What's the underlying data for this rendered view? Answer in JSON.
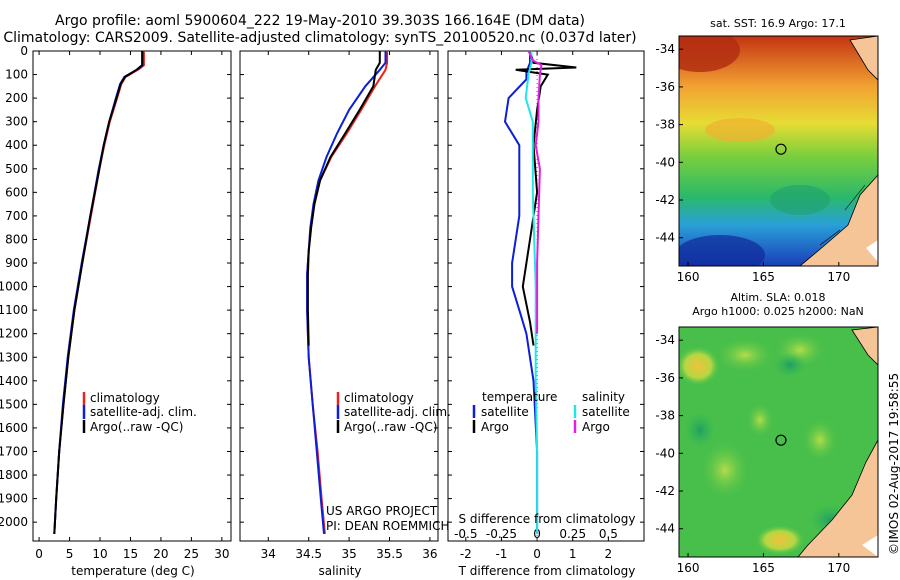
{
  "title": {
    "line1": "Argo profile: aoml 5900604_222 19-May-2010 39.303S 166.164E (DM data)",
    "line2": "Climatology: CARS2009. Satellite-adjusted climatology: synTS_20100520.nc (0.037d later)"
  },
  "colors": {
    "climatology": "#e8221c",
    "satellite": "#0b1fd6",
    "argo": "#000000",
    "sal_satellite": "#20e6e6",
    "sal_argo": "#e020e0"
  },
  "chart_data": [
    {
      "type": "line",
      "id": "temperature",
      "xlabel": "temperature (deg C)",
      "ylabel": "",
      "xlim": [
        -1,
        31.5
      ],
      "ylim": [
        2080,
        0
      ],
      "xticks": [
        0,
        5,
        10,
        15,
        20,
        25,
        30
      ],
      "yticks": [
        0,
        100,
        200,
        300,
        400,
        500,
        600,
        700,
        800,
        900,
        1000,
        1100,
        1200,
        1300,
        1400,
        1500,
        1600,
        1700,
        1800,
        1900,
        2000
      ],
      "legend": {
        "placement": "center-left",
        "entries": [
          "climatology",
          "satellite-adj. clim.",
          "Argo(..raw -QC)"
        ]
      },
      "series": [
        {
          "name": "climatology",
          "depth": [
            0,
            60,
            75,
            110,
            140,
            200,
            300,
            400,
            500,
            700,
            900,
            1100,
            1300,
            1500,
            1700,
            1900,
            2050
          ],
          "values": [
            17.2,
            17.2,
            16.5,
            14.2,
            13.5,
            12.8,
            11.6,
            10.7,
            9.9,
            8.5,
            7.1,
            5.8,
            4.8,
            4.0,
            3.3,
            2.8,
            2.5
          ]
        },
        {
          "name": "satellite-adj. clim.",
          "depth": [
            0,
            60,
            75,
            110,
            140,
            200,
            300,
            400,
            500,
            700,
            900,
            1100,
            1300,
            1500,
            1700,
            1900,
            2050
          ],
          "values": [
            17.0,
            17.0,
            16.3,
            14.0,
            13.3,
            12.6,
            11.5,
            10.6,
            9.8,
            8.4,
            7.0,
            5.7,
            4.7,
            3.9,
            3.3,
            2.8,
            2.5
          ]
        },
        {
          "name": "Argo(..raw -QC)",
          "depth": [
            0,
            60,
            80,
            110,
            140,
            200,
            300,
            400,
            500,
            700,
            900,
            1100,
            1300,
            1500,
            1700,
            1900,
            2050
          ],
          "values": [
            16.9,
            16.9,
            16.0,
            14.1,
            13.4,
            12.7,
            11.5,
            10.6,
            9.9,
            8.4,
            7.1,
            5.8,
            4.8,
            4.0,
            3.3,
            2.8,
            2.5
          ]
        }
      ]
    },
    {
      "type": "line",
      "id": "salinity",
      "xlabel": "salinity",
      "ylabel": "",
      "xlim": [
        33.65,
        36.1
      ],
      "ylim": [
        2080,
        0
      ],
      "xticks": [
        34,
        34.5,
        35,
        35.5,
        36
      ],
      "legend": {
        "placement": "center-right",
        "entries": [
          "climatology",
          "satellite-adj. clim.",
          "Argo(..raw -QC)"
        ]
      },
      "series": [
        {
          "name": "climatology",
          "depth": [
            0,
            50,
            80,
            150,
            250,
            350,
            450,
            550,
            650,
            750,
            850,
            950,
            1100,
            1300,
            1500,
            1700,
            1900,
            2050
          ],
          "values": [
            35.47,
            35.47,
            35.45,
            35.32,
            35.15,
            34.97,
            34.78,
            34.64,
            34.57,
            34.53,
            34.5,
            34.48,
            34.48,
            34.5,
            34.55,
            34.61,
            34.66,
            34.7
          ]
        },
        {
          "name": "satellite-adj. clim.",
          "depth": [
            0,
            50,
            80,
            150,
            250,
            350,
            450,
            550,
            650,
            750,
            850,
            950,
            1100,
            1300,
            1500,
            1700,
            1900,
            2050
          ],
          "values": [
            35.45,
            35.45,
            35.38,
            35.2,
            35.0,
            34.85,
            34.72,
            34.62,
            34.56,
            34.52,
            34.5,
            34.48,
            34.48,
            34.5,
            34.55,
            34.6,
            34.65,
            34.69
          ]
        },
        {
          "name": "Argo(..raw -QC)",
          "depth": [
            0,
            50,
            80,
            150,
            250,
            350,
            450,
            550,
            650,
            750,
            850,
            950,
            1100,
            1250
          ],
          "values": [
            35.38,
            35.38,
            35.33,
            35.3,
            35.13,
            34.95,
            34.77,
            34.64,
            34.57,
            34.53,
            34.5,
            34.49,
            34.49,
            34.5
          ]
        }
      ],
      "annotations": [
        "US ARGO PROJECT",
        "PI: DEAN ROEMMICH"
      ]
    },
    {
      "type": "line",
      "id": "differences",
      "xlabel": "T difference from climatology",
      "x2label": "S difference from climatology",
      "xlim": [
        -2.5,
        3.0
      ],
      "x2lim": [
        -0.625,
        0.75
      ],
      "ylim": [
        2080,
        0
      ],
      "xticks": [
        -2,
        -1,
        0,
        1,
        2
      ],
      "x2ticks": [
        -0.5,
        -0.25,
        0,
        0.25,
        0.5
      ],
      "legend": {
        "placement": "center",
        "groups": [
          "temperature",
          "salinity"
        ],
        "entries": [
          "satellite",
          "Argo",
          "satellite",
          "Argo"
        ]
      },
      "series": [
        {
          "name": "temperature satellite",
          "depth": [
            0,
            50,
            90,
            120,
            200,
            300,
            400,
            500,
            700,
            900,
            1000,
            1100,
            1200,
            1400,
            1700,
            2050
          ],
          "values": [
            -0.2,
            -0.2,
            -0.3,
            -0.3,
            -0.8,
            -0.9,
            -0.5,
            -0.5,
            -0.5,
            -0.7,
            -0.7,
            -0.5,
            -0.3,
            -0.1,
            0.0,
            0.0
          ]
        },
        {
          "name": "temperature Argo",
          "depth": [
            0,
            50,
            70,
            80,
            100,
            150,
            250,
            400,
            600,
            800,
            1000,
            1150,
            1250
          ],
          "values": [
            -0.2,
            -0.1,
            1.1,
            -0.6,
            0.3,
            0.1,
            0.0,
            -0.1,
            0.0,
            -0.2,
            -0.4,
            -0.2,
            -0.1
          ]
        },
        {
          "name": "salinity satellite",
          "depth": [
            0,
            50,
            100,
            200,
            300,
            400,
            600,
            800,
            1000,
            1400,
            1700,
            2050
          ],
          "values": [
            -0.04,
            -0.04,
            -0.06,
            -0.08,
            -0.03,
            -0.03,
            -0.03,
            -0.02,
            -0.01,
            -0.01,
            0.0,
            0.0
          ]
        },
        {
          "name": "salinity Argo",
          "depth": [
            0,
            40,
            60,
            100,
            200,
            300,
            400,
            500,
            700,
            900,
            1100,
            1200
          ],
          "values": [
            -0.06,
            -0.03,
            0.03,
            0.02,
            0.01,
            0.01,
            -0.01,
            0.02,
            0.01,
            0.0,
            0.0,
            0.0
          ]
        }
      ]
    },
    {
      "type": "heatmap",
      "id": "sst-map",
      "title": "sat. SST: 16.9 Argo: 17.1",
      "xticks": [
        160,
        165,
        170
      ],
      "yticks": [
        -34,
        -36,
        -38,
        -40,
        -42,
        -44
      ],
      "marker": {
        "lon": 166.164,
        "lat": -39.303
      }
    },
    {
      "type": "heatmap",
      "id": "sla-map",
      "title": "Altim. SLA: 0.018",
      "subtitle": "Argo h1000: 0.025 h2000: NaN",
      "xticks": [
        160,
        165,
        170
      ],
      "yticks": [
        -34,
        -36,
        -38,
        -40,
        -42,
        -44
      ],
      "marker": {
        "lon": 166.164,
        "lat": -39.303
      }
    }
  ],
  "credit": "©IMOS 02-Aug-2017 19:58:55"
}
